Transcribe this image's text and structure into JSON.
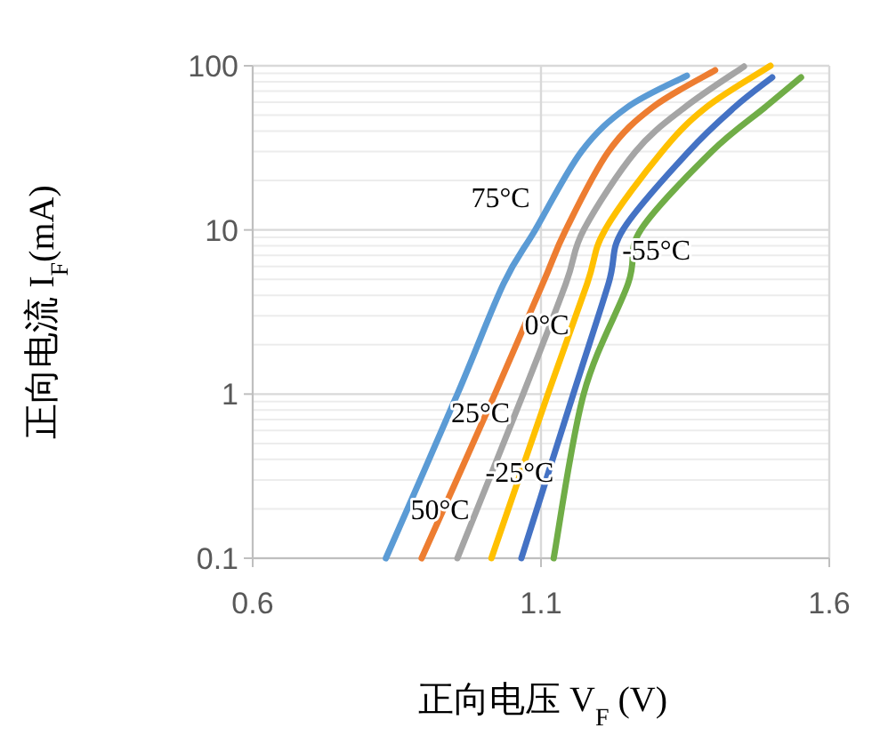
{
  "chart_data": {
    "type": "line",
    "xlabel": "正向电压 V$_{F}$ (V)",
    "ylabel": "正向电流 I$_{F}$(mA)",
    "log": "y",
    "grid": true,
    "xlim": [
      0.6,
      1.6
    ],
    "ylim": [
      0.1,
      100
    ],
    "xticks": [
      0.6,
      1.1,
      1.6
    ],
    "yticks": [
      0.1,
      1,
      10,
      100
    ],
    "series": [
      {
        "name": "75°C",
        "color": "#5b9bd5",
        "x": [
          0.831,
          0.955,
          1.035,
          1.09,
          1.17,
          1.25,
          1.353
        ],
        "values": [
          0.1,
          1,
          4.7,
          10,
          30,
          56,
          87
        ]
      },
      {
        "name": "50°C",
        "color": "#ed7d31",
        "x": [
          0.893,
          1.02,
          1.103,
          1.143,
          1.217,
          1.294,
          1.402
        ],
        "values": [
          0.1,
          1,
          4.7,
          10,
          30,
          56,
          94
        ]
      },
      {
        "name": "25°C",
        "color": "#a5a5a5",
        "x": [
          0.955,
          1.069,
          1.143,
          1.174,
          1.264,
          1.35,
          1.452
        ],
        "values": [
          0.1,
          1,
          4.7,
          10,
          30,
          56,
          99
        ]
      },
      {
        "name": "0°C",
        "color": "#ffc000",
        "x": [
          1.014,
          1.112,
          1.18,
          1.211,
          1.31,
          1.387,
          1.498
        ],
        "values": [
          0.1,
          1,
          4.7,
          10,
          30,
          56,
          100
        ]
      },
      {
        "name": "-25°C",
        "color": "#4472c4",
        "x": [
          1.066,
          1.156,
          1.217,
          1.242,
          1.356,
          1.436,
          1.501
        ],
        "values": [
          0.1,
          1,
          4.7,
          10,
          30,
          56,
          85
        ]
      },
      {
        "name": "-55°C",
        "color": "#70ad47",
        "x": [
          1.122,
          1.174,
          1.251,
          1.273,
          1.396,
          1.489,
          1.551
        ],
        "values": [
          0.1,
          1,
          4.7,
          10,
          30,
          56,
          85
        ]
      }
    ]
  }
}
